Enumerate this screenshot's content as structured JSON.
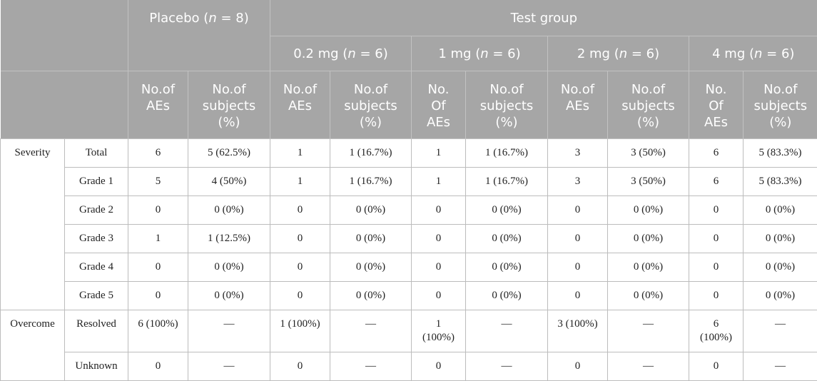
{
  "header": {
    "placebo": {
      "label": "Placebo (",
      "n_var": "n",
      "n_val": " = 8)"
    },
    "test_group": "Test group",
    "doses": [
      {
        "label": "0.2 mg (",
        "n_var": "n",
        "n_val": " = 6)"
      },
      {
        "label": "1 mg (",
        "n_var": "n",
        "n_val": " = 6)"
      },
      {
        "label": "2 mg (",
        "n_var": "n",
        "n_val": " = 6)"
      },
      {
        "label": "4 mg (",
        "n_var": "n",
        "n_val": " = 6)"
      }
    ],
    "sub_cols": [
      [
        "No.of",
        "AEs"
      ],
      [
        "No.of",
        "subjects",
        "(%)"
      ],
      [
        "No.of",
        "AEs"
      ],
      [
        "No.of",
        "subjects",
        "(%)"
      ],
      [
        "No.",
        "Of",
        "AEs"
      ],
      [
        "No.of",
        "subjects",
        "(%)"
      ],
      [
        "No.of",
        "AEs"
      ],
      [
        "No.of",
        "subjects",
        "(%)"
      ],
      [
        "No.",
        "Of",
        "AEs"
      ],
      [
        "No.of",
        "subjects",
        "(%)"
      ]
    ]
  },
  "groups": [
    {
      "name": "Severity",
      "rows": [
        {
          "label": "Total",
          "cells": [
            [
              "6"
            ],
            [
              "5 (62.5%)"
            ],
            [
              "1"
            ],
            [
              "1 (16.7%)"
            ],
            [
              "1"
            ],
            [
              "1 (16.7%)"
            ],
            [
              "3"
            ],
            [
              "3 (50%)"
            ],
            [
              "6"
            ],
            [
              "5 (83.3%)"
            ]
          ]
        },
        {
          "label": "Grade 1",
          "cells": [
            [
              "5"
            ],
            [
              "4 (50%)"
            ],
            [
              "1"
            ],
            [
              "1 (16.7%)"
            ],
            [
              "1"
            ],
            [
              "1 (16.7%)"
            ],
            [
              "3"
            ],
            [
              "3 (50%)"
            ],
            [
              "6"
            ],
            [
              "5 (83.3%)"
            ]
          ]
        },
        {
          "label": "Grade 2",
          "cells": [
            [
              "0"
            ],
            [
              "0 (0%)"
            ],
            [
              "0"
            ],
            [
              "0 (0%)"
            ],
            [
              "0"
            ],
            [
              "0 (0%)"
            ],
            [
              "0"
            ],
            [
              "0 (0%)"
            ],
            [
              "0"
            ],
            [
              "0 (0%)"
            ]
          ]
        },
        {
          "label": "Grade 3",
          "cells": [
            [
              "1"
            ],
            [
              "1 (12.5%)"
            ],
            [
              "0"
            ],
            [
              "0 (0%)"
            ],
            [
              "0"
            ],
            [
              "0 (0%)"
            ],
            [
              "0"
            ],
            [
              "0 (0%)"
            ],
            [
              "0"
            ],
            [
              "0 (0%)"
            ]
          ]
        },
        {
          "label": "Grade 4",
          "cells": [
            [
              "0"
            ],
            [
              "0 (0%)"
            ],
            [
              "0"
            ],
            [
              "0 (0%)"
            ],
            [
              "0"
            ],
            [
              "0 (0%)"
            ],
            [
              "0"
            ],
            [
              "0 (0%)"
            ],
            [
              "0"
            ],
            [
              "0 (0%)"
            ]
          ]
        },
        {
          "label": "Grade 5",
          "cells": [
            [
              "0"
            ],
            [
              "0 (0%)"
            ],
            [
              "0"
            ],
            [
              "0 (0%)"
            ],
            [
              "0"
            ],
            [
              "0 (0%)"
            ],
            [
              "0"
            ],
            [
              "0 (0%)"
            ],
            [
              "0"
            ],
            [
              "0 (0%)"
            ]
          ]
        }
      ]
    },
    {
      "name": "Overcome",
      "rows": [
        {
          "label": "Resolved",
          "tall": true,
          "cells": [
            [
              "6 (100%)"
            ],
            [
              "—"
            ],
            [
              "1 (100%)"
            ],
            [
              "—"
            ],
            [
              "1",
              "(100%)"
            ],
            [
              "—"
            ],
            [
              "3 (100%)"
            ],
            [
              "—"
            ],
            [
              "6",
              "(100%)"
            ],
            [
              "—"
            ]
          ]
        },
        {
          "label": "Unknown",
          "cells": [
            [
              "0"
            ],
            [
              "—"
            ],
            [
              "0"
            ],
            [
              "—"
            ],
            [
              "0"
            ],
            [
              "—"
            ],
            [
              "0"
            ],
            [
              "—"
            ],
            [
              "0"
            ],
            [
              "—"
            ]
          ]
        }
      ]
    }
  ]
}
